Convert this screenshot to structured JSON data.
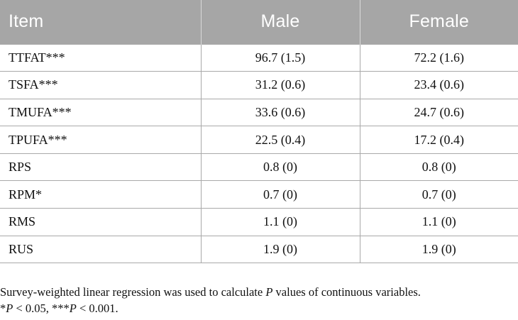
{
  "table": {
    "headers": [
      "Item",
      "Male",
      "Female"
    ],
    "rows": [
      {
        "item": "TTFAT***",
        "male": "96.7 (1.5)",
        "female": "72.2 (1.6)"
      },
      {
        "item": "TSFA***",
        "male": "31.2 (0.6)",
        "female": "23.4 (0.6)"
      },
      {
        "item": "TMUFA***",
        "male": "33.6 (0.6)",
        "female": "24.7 (0.6)"
      },
      {
        "item": "TPUFA***",
        "male": "22.5 (0.4)",
        "female": "17.2 (0.4)"
      },
      {
        "item": "RPS",
        "male": "0.8 (0)",
        "female": "0.8 (0)"
      },
      {
        "item": "RPM*",
        "male": "0.7 (0)",
        "female": "0.7 (0)"
      },
      {
        "item": "RMS",
        "male": "1.1 (0)",
        "female": "1.1 (0)"
      },
      {
        "item": "RUS",
        "male": "1.9 (0)",
        "female": "1.9 (0)"
      }
    ]
  },
  "footnote": {
    "line1_a": "Survey-weighted linear regression was used to calculate ",
    "line1_p": "P",
    "line1_b": " values of continuous variables.",
    "line2_s1": "*",
    "line2_p1": "P",
    "line2_t1": " < 0.05, ",
    "line2_s2": "***",
    "line2_p2": "P",
    "line2_t2": " < 0.001."
  },
  "colors": {
    "header_bg": "#a6a6a6",
    "header_text": "#ffffff",
    "grid": "#a9a9a9"
  }
}
